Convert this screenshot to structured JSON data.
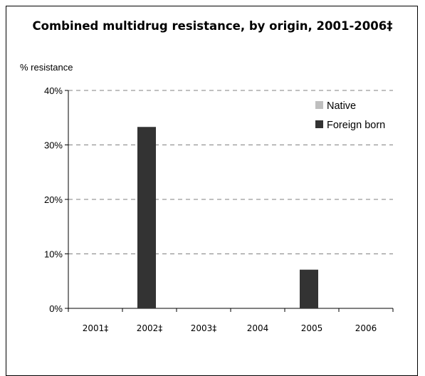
{
  "chart_data": {
    "type": "bar",
    "title": "Combined multidrug resistance, by origin, 2001-2006‡",
    "ylabel": "% resistance",
    "xlabel": "",
    "categories": [
      "2001‡",
      "2002‡",
      "2003‡",
      "2004",
      "2005",
      "2006"
    ],
    "series": [
      {
        "name": "Native",
        "values": [
          0,
          0,
          0,
          0,
          0,
          0
        ],
        "color": "#bfbfbf"
      },
      {
        "name": "Foreign born",
        "values": [
          0,
          33.3,
          0,
          0,
          7.1,
          0
        ],
        "color": "#333333"
      }
    ],
    "ylim": [
      0,
      40
    ],
    "yticks": [
      0,
      10,
      20,
      30,
      40
    ],
    "ytick_labels": [
      "0%",
      "10%",
      "20%",
      "30%",
      "40%"
    ],
    "grid": true,
    "legend_position": "top-right"
  }
}
